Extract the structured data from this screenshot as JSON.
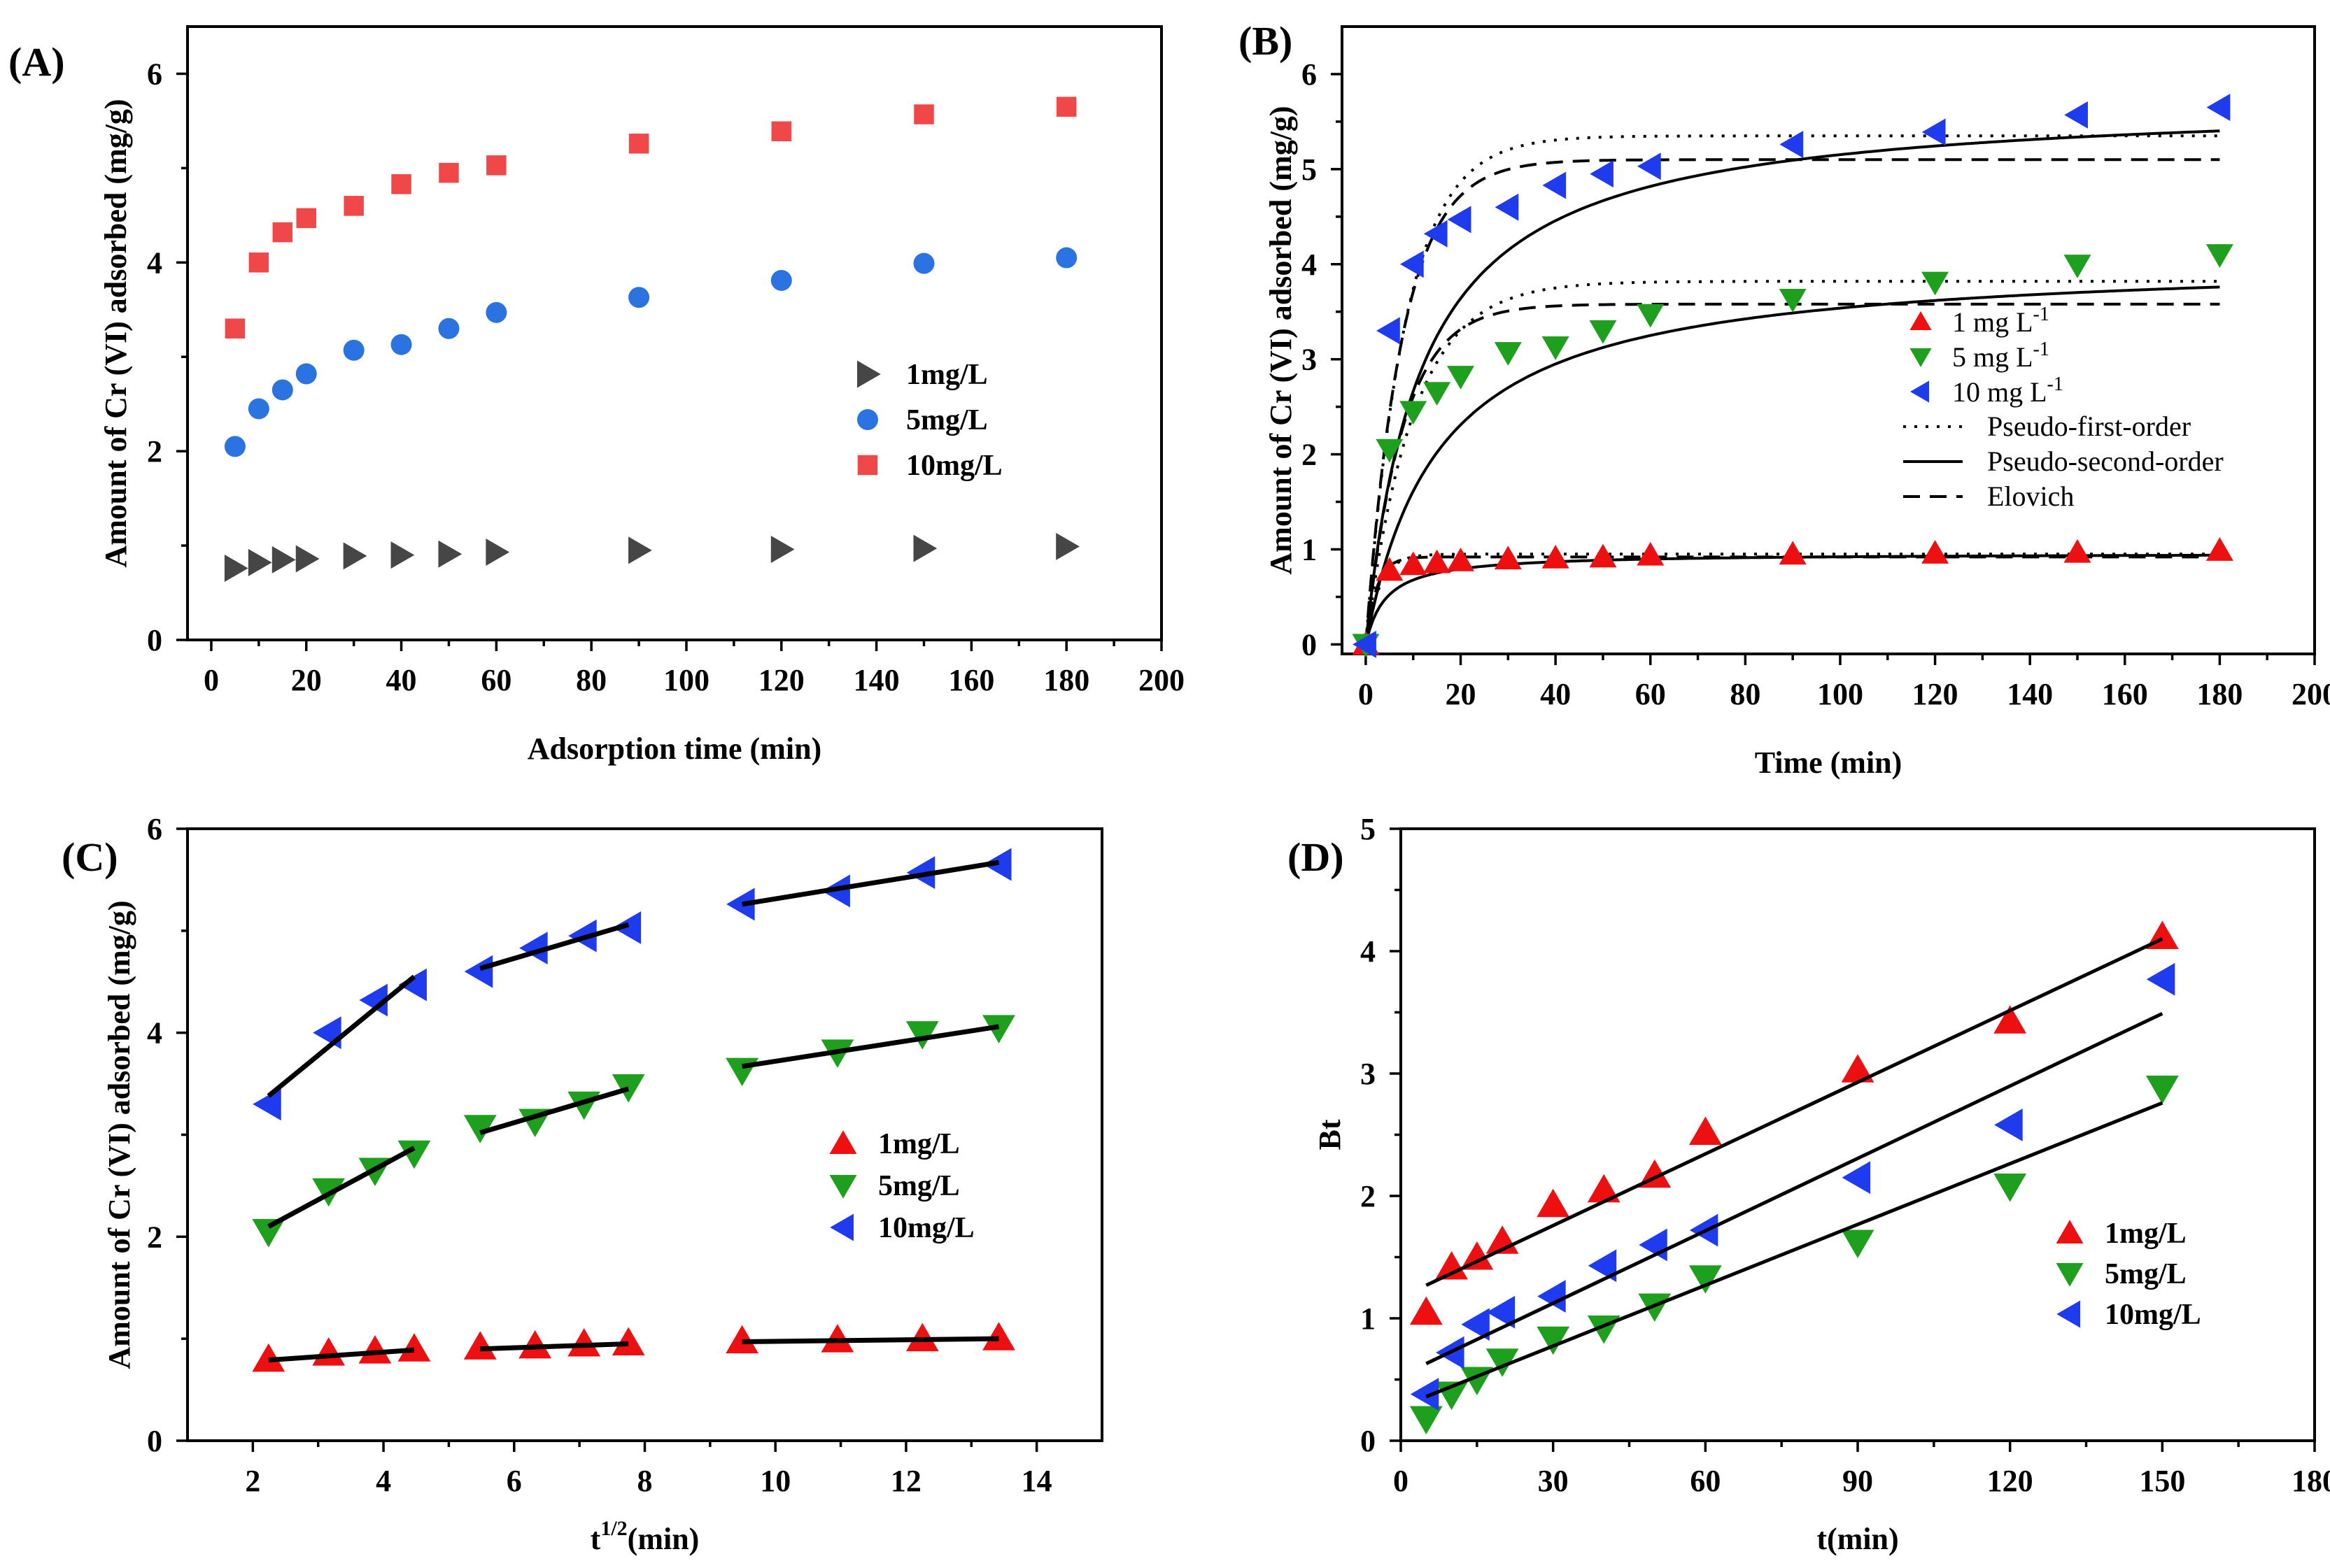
{
  "colors": {
    "c1": "#464646",
    "c5": "#2a73e0",
    "c10": "#f04848",
    "red": "#ee1010",
    "green": "#1ea01e",
    "blue": "#1e3cee",
    "line": "#000000"
  },
  "chart_data": [
    {
      "id": "A",
      "panel_label": "(A)",
      "type": "scatter",
      "xlabel": "Adsorption time (min)",
      "ylabel": "Amount of Cr (VI) adsorbed (mg/g)",
      "xlim": [
        -5,
        200
      ],
      "ylim": [
        0,
        6.5
      ],
      "xticks": [
        0,
        20,
        40,
        60,
        80,
        100,
        120,
        140,
        160,
        180,
        200
      ],
      "yticks": [
        0,
        2,
        4,
        6
      ],
      "legend_position": "right-middle",
      "series": [
        {
          "name": "1mg/L",
          "color_key": "c1",
          "marker": "triangle-right",
          "x": [
            5,
            10,
            15,
            20,
            30,
            40,
            50,
            60,
            90,
            120,
            150,
            180
          ],
          "y": [
            0.76,
            0.82,
            0.85,
            0.86,
            0.89,
            0.9,
            0.91,
            0.93,
            0.95,
            0.96,
            0.97,
            0.99
          ]
        },
        {
          "name": "5mg/L",
          "color_key": "c5",
          "marker": "circle",
          "x": [
            5,
            10,
            15,
            20,
            30,
            40,
            50,
            60,
            90,
            120,
            150,
            180
          ],
          "y": [
            2.05,
            2.45,
            2.65,
            2.82,
            3.07,
            3.13,
            3.3,
            3.47,
            3.63,
            3.81,
            3.99,
            4.05
          ]
        },
        {
          "name": "10mg/L",
          "color_key": "c10",
          "marker": "square",
          "x": [
            5,
            10,
            15,
            20,
            30,
            40,
            50,
            60,
            90,
            120,
            150,
            180
          ],
          "y": [
            3.3,
            4.0,
            4.32,
            4.47,
            4.6,
            4.83,
            4.95,
            5.03,
            5.26,
            5.39,
            5.57,
            5.65
          ]
        }
      ]
    },
    {
      "id": "B",
      "panel_label": "(B)",
      "type": "scatter",
      "xlabel": "Time (min)",
      "ylabel": "Amount of Cr (VI) adsorbed (mg/g)",
      "xlim": [
        -5,
        200
      ],
      "ylim": [
        -0.1,
        6.5
      ],
      "xticks": [
        0,
        20,
        40,
        60,
        80,
        100,
        120,
        140,
        160,
        180,
        200
      ],
      "yticks": [
        0,
        1,
        2,
        3,
        4,
        5,
        6
      ],
      "legend_position": "right-middle",
      "series": [
        {
          "name": "1 mg L",
          "sup": "-1",
          "color_key": "red",
          "marker": "triangle-up",
          "x": [
            0,
            5,
            10,
            15,
            20,
            30,
            40,
            50,
            60,
            90,
            120,
            150,
            180
          ],
          "y": [
            0.0,
            0.78,
            0.84,
            0.86,
            0.88,
            0.9,
            0.91,
            0.92,
            0.94,
            0.95,
            0.96,
            0.97,
            0.99
          ]
        },
        {
          "name": "5 mg L",
          "sup": "-1",
          "color_key": "green",
          "marker": "triangle-down",
          "x": [
            0,
            5,
            10,
            15,
            20,
            30,
            40,
            50,
            60,
            90,
            120,
            150,
            180
          ],
          "y": [
            0.0,
            2.05,
            2.45,
            2.65,
            2.82,
            3.07,
            3.13,
            3.3,
            3.47,
            3.63,
            3.81,
            3.99,
            4.1
          ]
        },
        {
          "name": "10 mg L",
          "sup": "-1",
          "color_key": "blue",
          "marker": "triangle-left",
          "x": [
            0,
            5,
            10,
            15,
            20,
            30,
            40,
            50,
            60,
            90,
            120,
            150,
            180
          ],
          "y": [
            0.0,
            3.3,
            4.0,
            4.32,
            4.47,
            4.6,
            4.83,
            4.95,
            5.03,
            5.26,
            5.39,
            5.57,
            5.65
          ]
        }
      ],
      "fits": [
        {
          "name": "Pseudo-first-order",
          "style": "dotted",
          "params": [
            {
              "qe": 0.95,
              "k": 0.35
            },
            {
              "qe": 3.82,
              "k": 0.1
            },
            {
              "qe": 5.35,
              "k": 0.12
            }
          ]
        },
        {
          "name": "Pseudo-second-order",
          "style": "solid",
          "params": [
            {
              "qe": 0.96,
              "k": 0.25
            },
            {
              "qe": 4.08,
              "k": 0.016
            },
            {
              "qe": 5.75,
              "k": 0.015
            }
          ]
        },
        {
          "name": "Elovich",
          "style": "dashed",
          "params": [
            {
              "qe": 0.92,
              "k": 0.45
            },
            {
              "qe": 3.58,
              "k": 0.13
            },
            {
              "qe": 5.1,
              "k": 0.13
            }
          ]
        }
      ]
    },
    {
      "id": "C",
      "panel_label": "(C)",
      "type": "scatter",
      "xlabel": "t",
      "xlabel_sup": "1/2",
      "xlabel_suffix": "(min)",
      "ylabel": "Amount of Cr (VI) adsorbed (mg/g)",
      "xlim": [
        1,
        15
      ],
      "ylim": [
        0,
        6
      ],
      "xticks": [
        2,
        4,
        6,
        8,
        10,
        12,
        14
      ],
      "yticks": [
        0,
        2,
        4,
        6
      ],
      "legend_position": "right-middle",
      "series": [
        {
          "name": "1mg/L",
          "color_key": "red",
          "marker": "triangle-up",
          "x": [
            2.24,
            3.16,
            3.87,
            4.47,
            5.48,
            6.32,
            7.07,
            7.75,
            9.49,
            10.95,
            12.25,
            13.42
          ],
          "y": [
            0.8,
            0.86,
            0.88,
            0.9,
            0.92,
            0.93,
            0.95,
            0.96,
            0.98,
            0.99,
            1.0,
            1.01
          ]
        },
        {
          "name": "5mg/L",
          "color_key": "green",
          "marker": "triangle-down",
          "x": [
            2.24,
            3.16,
            3.87,
            4.47,
            5.48,
            6.32,
            7.07,
            7.75,
            9.49,
            10.95,
            12.25,
            13.42
          ],
          "y": [
            2.05,
            2.45,
            2.65,
            2.82,
            3.07,
            3.13,
            3.3,
            3.47,
            3.63,
            3.81,
            3.99,
            4.05
          ]
        },
        {
          "name": "10mg/L",
          "color_key": "blue",
          "marker": "triangle-left",
          "x": [
            2.24,
            3.16,
            3.87,
            4.47,
            5.48,
            6.32,
            7.07,
            7.75,
            9.49,
            10.95,
            12.25,
            13.42
          ],
          "y": [
            3.3,
            4.0,
            4.32,
            4.47,
            4.6,
            4.83,
            4.95,
            5.03,
            5.26,
            5.39,
            5.57,
            5.65
          ]
        }
      ],
      "fit_segments": [
        {
          "x": [
            2.24,
            4.47
          ],
          "y": [
            0.79,
            0.89
          ]
        },
        {
          "x": [
            5.48,
            7.75
          ],
          "y": [
            0.9,
            0.95
          ]
        },
        {
          "x": [
            9.49,
            13.42
          ],
          "y": [
            0.97,
            1.0
          ]
        },
        {
          "x": [
            2.24,
            4.47
          ],
          "y": [
            2.1,
            2.87
          ]
        },
        {
          "x": [
            5.48,
            7.75
          ],
          "y": [
            3.02,
            3.45
          ]
        },
        {
          "x": [
            9.49,
            13.42
          ],
          "y": [
            3.67,
            4.06
          ]
        },
        {
          "x": [
            2.24,
            4.47
          ],
          "y": [
            3.38,
            4.55
          ]
        },
        {
          "x": [
            5.48,
            7.75
          ],
          "y": [
            4.63,
            5.06
          ]
        },
        {
          "x": [
            9.49,
            13.42
          ],
          "y": [
            5.26,
            5.67
          ]
        }
      ]
    },
    {
      "id": "D",
      "panel_label": "(D)",
      "type": "scatter",
      "xlabel": "t(min)",
      "ylabel": "Bt",
      "xlim": [
        0,
        180
      ],
      "ylim": [
        0,
        5
      ],
      "xticks": [
        0,
        30,
        60,
        90,
        120,
        150,
        180
      ],
      "yticks": [
        0,
        1,
        2,
        3,
        4,
        5
      ],
      "legend_position": "right-middle",
      "series": [
        {
          "name": "1mg/L",
          "color_key": "red",
          "marker": "triangle-up",
          "x": [
            5,
            10,
            15,
            20,
            30,
            40,
            50,
            60,
            90,
            120,
            150
          ],
          "y": [
            1.05,
            1.42,
            1.5,
            1.63,
            1.93,
            2.05,
            2.17,
            2.52,
            3.03,
            3.43,
            4.12
          ]
        },
        {
          "name": "5mg/L",
          "color_key": "green",
          "marker": "triangle-down",
          "x": [
            5,
            10,
            15,
            20,
            30,
            40,
            50,
            60,
            90,
            120,
            150
          ],
          "y": [
            0.18,
            0.38,
            0.5,
            0.65,
            0.83,
            0.92,
            1.1,
            1.33,
            1.62,
            2.08,
            2.88
          ]
        },
        {
          "name": "10mg/L",
          "color_key": "blue",
          "marker": "triangle-left",
          "x": [
            5,
            10,
            15,
            20,
            30,
            40,
            50,
            60,
            90,
            120,
            150
          ],
          "y": [
            0.38,
            0.72,
            0.95,
            1.05,
            1.18,
            1.43,
            1.6,
            1.72,
            2.15,
            2.58,
            3.77
          ]
        }
      ],
      "fit_lines": [
        {
          "x": [
            5,
            150
          ],
          "y": [
            1.27,
            4.1
          ]
        },
        {
          "x": [
            5,
            150
          ],
          "y": [
            0.36,
            2.76
          ]
        },
        {
          "x": [
            5,
            150
          ],
          "y": [
            0.63,
            3.49
          ]
        }
      ]
    }
  ]
}
